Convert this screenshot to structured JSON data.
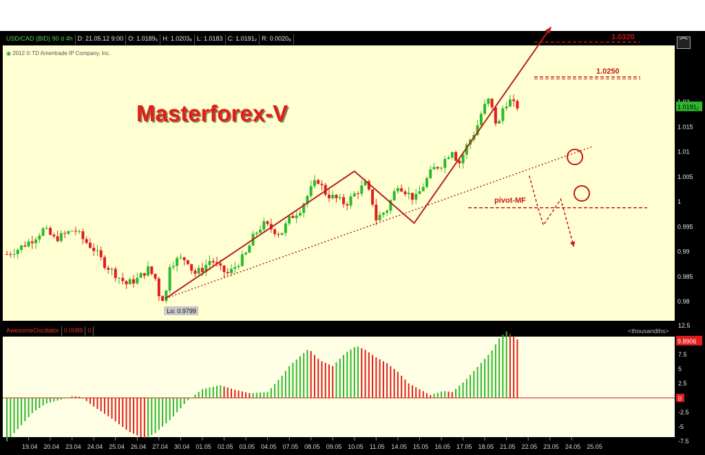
{
  "header": {
    "symbol": "USD/CAD (BID) 90 d 4h",
    "date": "D: 21.05.12 9:00",
    "open": "O: 1.0189₅",
    "high": "H: 1.0203₈",
    "low": "L: 1.0183",
    "close": "C: 1.0191₂",
    "range": "R: 0.0020₈"
  },
  "copyright": "2012 © TD Ameritrade IP Company, Inc.",
  "brand": "Masterforex-V",
  "annotations": {
    "target_1": "1.0320",
    "target_2": "1.0250",
    "pivot": "pivot-MF",
    "low_label": "Lo: 0.9799",
    "last_price": "1.0191₂"
  },
  "oscillator": {
    "name": "AwesomeOscillator",
    "value": "0.0089",
    "param": "0",
    "units_label": "<thousandths>",
    "last_value": "9.8906",
    "zero_label": "0"
  },
  "colors": {
    "up": "#2db82d",
    "down": "#e11d1d",
    "price_panel_bg": "#ffffd2",
    "osc_panel_bg": "#ffffe6",
    "frame": "#000000",
    "annotation": "#c81414",
    "trend_line": "#b81e1e"
  },
  "chart_data": [
    {
      "type": "candlestick",
      "title": "USD/CAD (BID) 90 d 4h",
      "x": [
        "19.04",
        "20.04",
        "23.04",
        "24.04",
        "25.04",
        "26.04",
        "27.04",
        "30.04",
        "01.05",
        "02.05",
        "03.05",
        "04.05",
        "07.05",
        "08.05",
        "09.05",
        "10.05",
        "11.05",
        "14.05",
        "15.05",
        "16.05",
        "17.05",
        "18.05",
        "21.05",
        "22.05",
        "23.05",
        "24.05",
        "25.05"
      ],
      "ylim": [
        0.975,
        1.0245
      ],
      "yticks": [
        0.98,
        0.985,
        0.99,
        0.995,
        1,
        1.005,
        1.01,
        1.015,
        1.02
      ],
      "ytick_labels": [
        "0.98",
        "0.985",
        "0.99",
        "0.995",
        "1",
        "1.005",
        "1.01",
        "1.015",
        "1.02"
      ],
      "path_points": [
        [
          0,
          0.9895
        ],
        [
          0.5,
          0.9905
        ],
        [
          1.2,
          0.9925
        ],
        [
          1.7,
          0.9945
        ],
        [
          2.2,
          0.9925
        ],
        [
          2.7,
          0.9935
        ],
        [
          3.1,
          0.9945
        ],
        [
          3.5,
          0.9925
        ],
        [
          4.0,
          0.9905
        ],
        [
          4.5,
          0.9875
        ],
        [
          5.0,
          0.9855
        ],
        [
          5.5,
          0.9835
        ],
        [
          6.0,
          0.9845
        ],
        [
          6.5,
          0.9865
        ],
        [
          6.85,
          0.9845
        ],
        [
          7.05,
          0.9805
        ],
        [
          7.3,
          0.9809
        ],
        [
          7.5,
          0.9875
        ],
        [
          7.9,
          0.9885
        ],
        [
          8.3,
          0.9885
        ],
        [
          8.6,
          0.9855
        ],
        [
          9.0,
          0.9865
        ],
        [
          9.4,
          0.9885
        ],
        [
          9.8,
          0.9865
        ],
        [
          10.2,
          0.9855
        ],
        [
          10.6,
          0.9875
        ],
        [
          11.0,
          0.9895
        ],
        [
          11.4,
          0.9935
        ],
        [
          11.8,
          0.9955
        ],
        [
          12.2,
          0.9945
        ],
        [
          12.6,
          0.9935
        ],
        [
          13.0,
          0.9965
        ],
        [
          13.5,
          0.9985
        ],
        [
          14.0,
          1.0025
        ],
        [
          14.3,
          1.0045
        ],
        [
          14.7,
          1.0015
        ],
        [
          15.2,
          1.0005
        ],
        [
          15.6,
          0.9995
        ],
        [
          16.0,
          1.0015
        ],
        [
          16.5,
          1.0035
        ],
        [
          16.8,
          1.0005
        ],
        [
          17.0,
          0.9965
        ],
        [
          17.5,
          0.9985
        ],
        [
          18.0,
          1.0035
        ],
        [
          18.5,
          1.0015
        ],
        [
          18.8,
          1.0005
        ],
        [
          19.2,
          1.0035
        ],
        [
          19.6,
          1.0065
        ],
        [
          20.0,
          1.0075
        ],
        [
          20.5,
          1.0105
        ],
        [
          20.8,
          1.0075
        ],
        [
          21.2,
          1.0115
        ],
        [
          21.6,
          1.0145
        ],
        [
          21.9,
          1.0185
        ],
        [
          22.2,
          1.0205
        ],
        [
          22.4,
          1.0175
        ],
        [
          22.6,
          1.0145
        ],
        [
          22.8,
          1.0185
        ],
        [
          23.1,
          1.0205
        ],
        [
          23.3,
          1.0195
        ],
        [
          23.5,
          1.0191
        ]
      ],
      "support_line": [
        [
          7.3,
          0.9806
        ],
        [
          27.0,
          1.0111
        ]
      ],
      "v_pattern": [
        [
          7.3,
          0.9806
        ],
        [
          16.0,
          1.0061
        ],
        [
          18.75,
          0.9957
        ],
        [
          25.05,
          1.035
        ]
      ],
      "pivot_level": 0.9988,
      "target_levels": [
        1.032,
        1.025
      ],
      "forecast_path": [
        [
          24.05,
          1.0052
        ],
        [
          24.45,
          0.9988
        ],
        [
          24.7,
          0.9953
        ],
        [
          25.5,
          1.0005
        ],
        [
          26.1,
          0.991
        ]
      ]
    },
    {
      "type": "bar",
      "title": "AwesomeOscillator",
      "ylabel": "<thousandths>",
      "ylim": [
        -8.5,
        13.5
      ],
      "yticks": [
        -7.5,
        -5,
        -2.5,
        0,
        2.5,
        5,
        7.5,
        10,
        12.5
      ],
      "ytick_labels": [
        "-7.5",
        "-5",
        "-2.5",
        "0",
        "2.5",
        "5",
        "7.5",
        "10",
        "12.5"
      ],
      "value_path": [
        [
          0,
          -7.5
        ],
        [
          0.6,
          -5.0
        ],
        [
          1.2,
          -2.5
        ],
        [
          1.8,
          -1.0
        ],
        [
          2.5,
          -0.3
        ],
        [
          3.0,
          0.3
        ],
        [
          3.4,
          0.2
        ],
        [
          4.0,
          -1.5
        ],
        [
          4.8,
          -3.5
        ],
        [
          5.6,
          -5.8
        ],
        [
          6.3,
          -7.0
        ],
        [
          6.8,
          -6.2
        ],
        [
          7.6,
          -3.5
        ],
        [
          8.3,
          -0.5
        ],
        [
          9.0,
          1.5
        ],
        [
          9.8,
          2.2
        ],
        [
          10.5,
          1.4
        ],
        [
          11.2,
          0.8
        ],
        [
          12.0,
          1.0
        ],
        [
          12.6,
          3.5
        ],
        [
          13.0,
          5.5
        ],
        [
          13.5,
          7.2
        ],
        [
          13.9,
          8.5
        ],
        [
          14.4,
          6.5
        ],
        [
          15.0,
          5.5
        ],
        [
          15.6,
          7.8
        ],
        [
          16.1,
          9.0
        ],
        [
          16.5,
          8.3
        ],
        [
          17.0,
          7.0
        ],
        [
          17.5,
          6.0
        ],
        [
          18.0,
          4.5
        ],
        [
          18.5,
          2.5
        ],
        [
          19.0,
          1.5
        ],
        [
          19.5,
          0.5
        ],
        [
          20.1,
          1.2
        ],
        [
          20.5,
          1.0
        ],
        [
          21.1,
          3.0
        ],
        [
          21.7,
          5.5
        ],
        [
          22.3,
          8.0
        ],
        [
          22.7,
          10.5
        ],
        [
          23.0,
          11.5
        ],
        [
          23.4,
          10.5
        ],
        [
          23.55,
          9.9
        ]
      ]
    }
  ]
}
